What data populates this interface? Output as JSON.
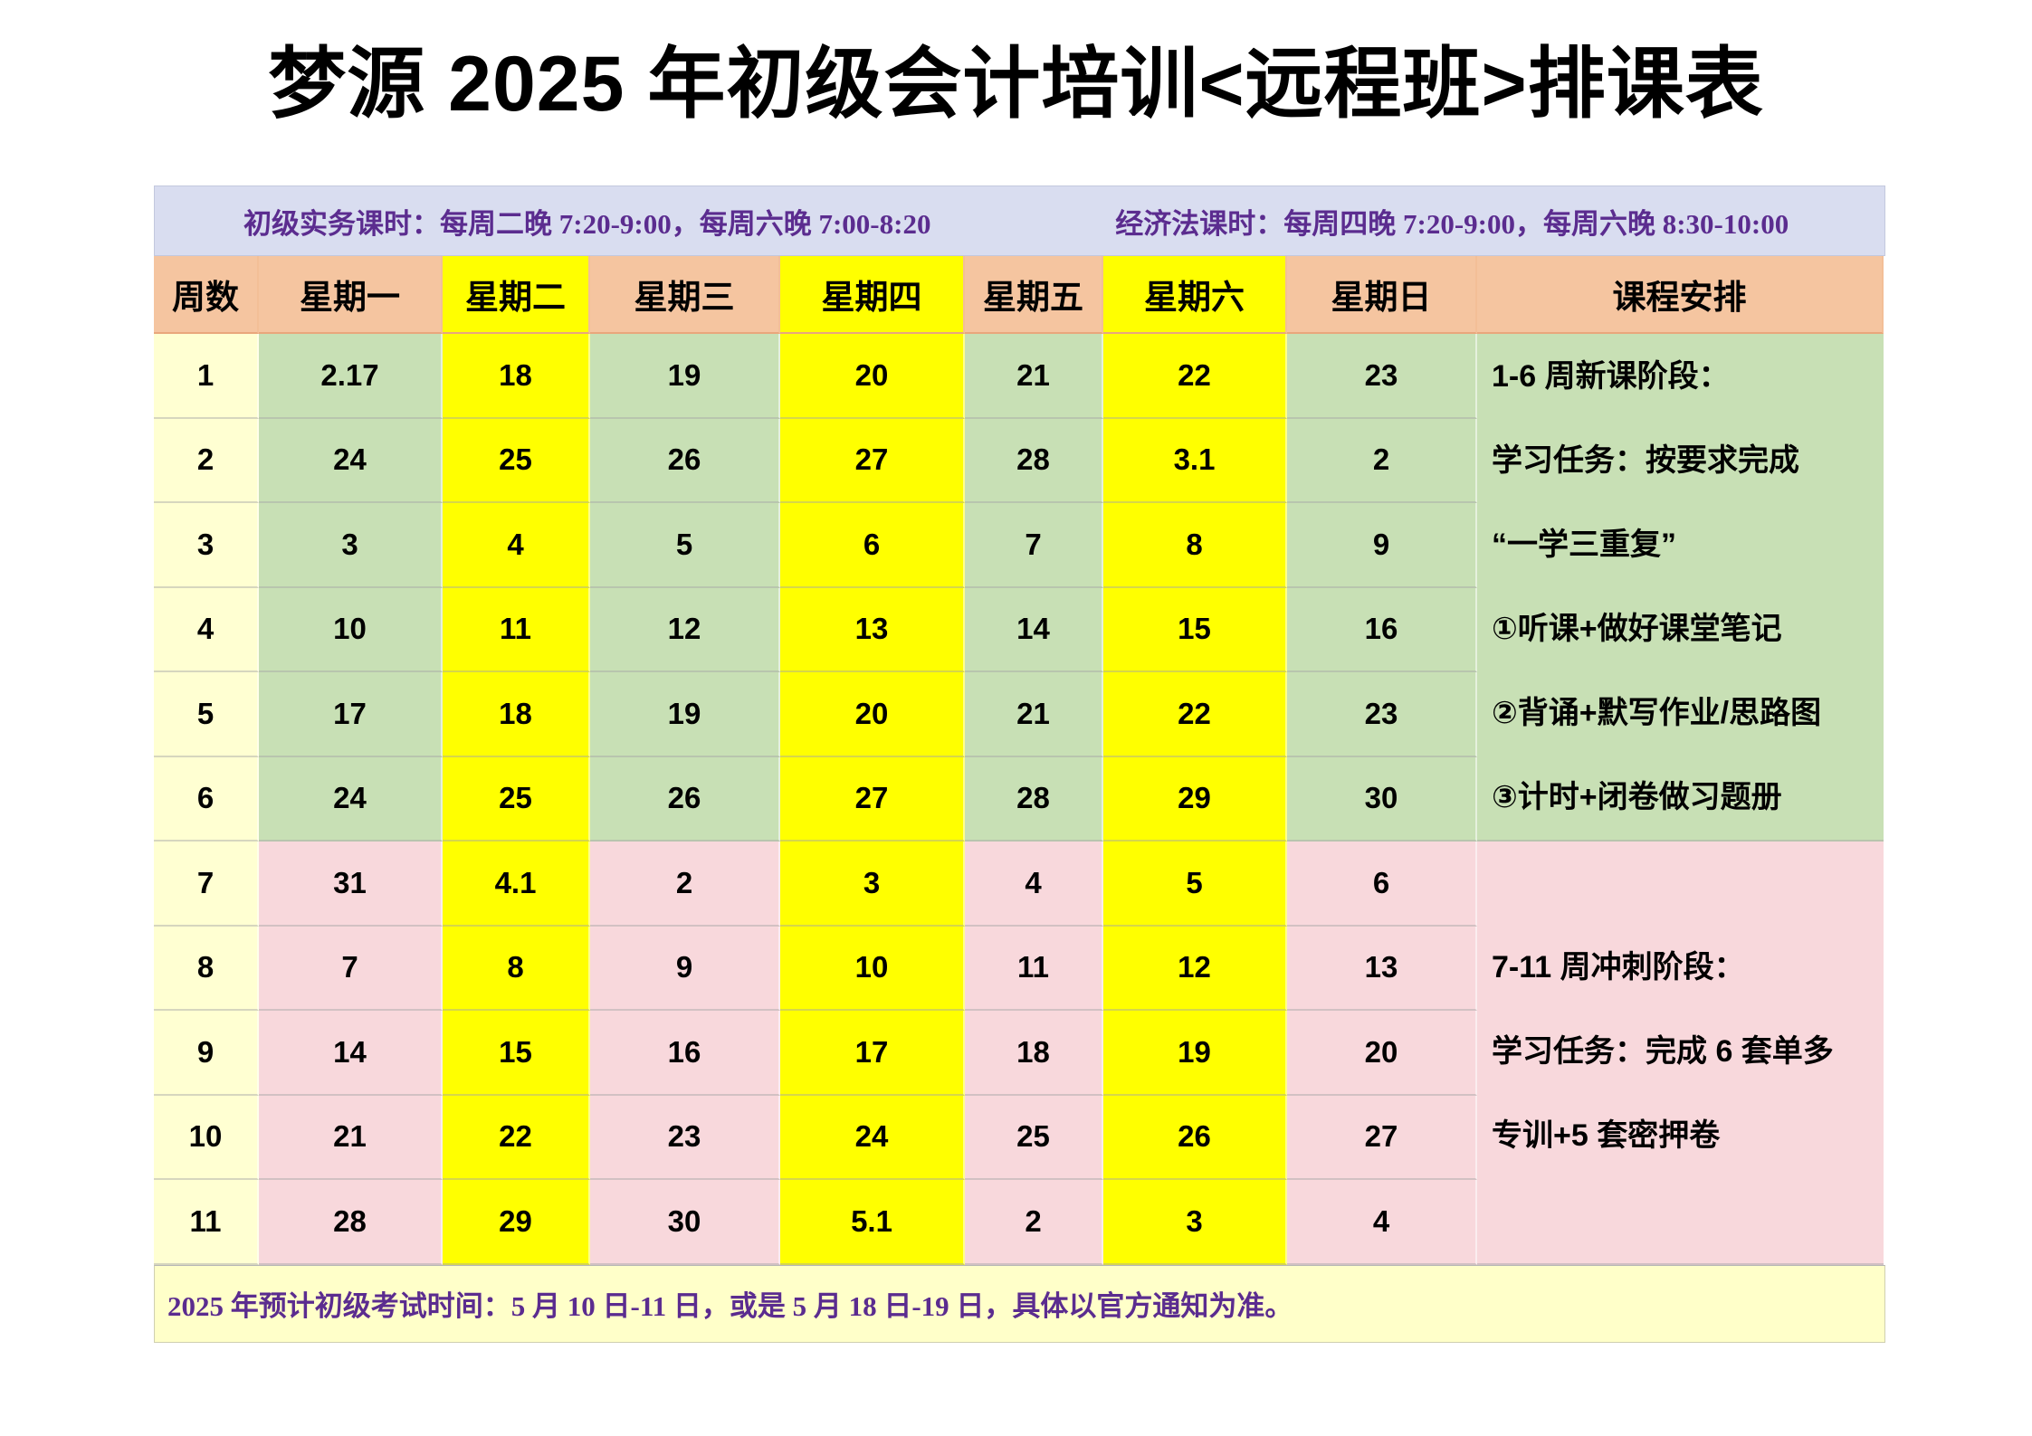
{
  "title": "梦源 2025 年初级会计培训<远程班>排课表",
  "info_bar": {
    "left": "初级实务课时：每周二晚 7:20-9:00，每周六晚 7:00-8:20",
    "right": "经济法课时：每周四晚 7:20-9:00，每周六晚 8:30-10:00"
  },
  "table": {
    "headers": [
      "周数",
      "星期一",
      "星期二",
      "星期三",
      "星期四",
      "星期五",
      "星期六",
      "星期日",
      "课程安排"
    ],
    "highlighted_day_columns": [
      "星期二",
      "星期四",
      "星期六"
    ],
    "rows": [
      {
        "week": "1",
        "phase": "new",
        "days": [
          "2.17",
          "18",
          "19",
          "20",
          "21",
          "22",
          "23"
        ]
      },
      {
        "week": "2",
        "phase": "new",
        "days": [
          "24",
          "25",
          "26",
          "27",
          "28",
          "3.1",
          "2"
        ]
      },
      {
        "week": "3",
        "phase": "new",
        "days": [
          "3",
          "4",
          "5",
          "6",
          "7",
          "8",
          "9"
        ]
      },
      {
        "week": "4",
        "phase": "new",
        "days": [
          "10",
          "11",
          "12",
          "13",
          "14",
          "15",
          "16"
        ]
      },
      {
        "week": "5",
        "phase": "new",
        "days": [
          "17",
          "18",
          "19",
          "20",
          "21",
          "22",
          "23"
        ]
      },
      {
        "week": "6",
        "phase": "new",
        "days": [
          "24",
          "25",
          "26",
          "27",
          "28",
          "29",
          "30"
        ]
      },
      {
        "week": "7",
        "phase": "sprint",
        "days": [
          "31",
          "4.1",
          "2",
          "3",
          "4",
          "5",
          "6"
        ]
      },
      {
        "week": "8",
        "phase": "sprint",
        "days": [
          "7",
          "8",
          "9",
          "10",
          "11",
          "12",
          "13"
        ]
      },
      {
        "week": "9",
        "phase": "sprint",
        "days": [
          "14",
          "15",
          "16",
          "17",
          "18",
          "19",
          "20"
        ]
      },
      {
        "week": "10",
        "phase": "sprint",
        "days": [
          "21",
          "22",
          "23",
          "24",
          "25",
          "26",
          "27"
        ]
      },
      {
        "week": "11",
        "phase": "sprint",
        "days": [
          "28",
          "29",
          "30",
          "5.1",
          "2",
          "3",
          "4"
        ]
      }
    ],
    "phase_notes": [
      {
        "rows": "1-6",
        "lines": [
          "1-6 周新课阶段：",
          "学习任务：按要求完成",
          "“一学三重复”",
          "①听课+做好课堂笔记",
          "②背诵+默写作业/思路图",
          "③计时+闭卷做习题册"
        ]
      },
      {
        "rows": "7-11",
        "lines": [
          "7-11 周冲刺阶段：",
          "学习任务：完成 6 套单多",
          "专训+5 套密押卷"
        ]
      }
    ]
  },
  "footer_note": "2025 年预计初级考试时间：5 月 10 日-11 日，或是 5 月 18 日-19 日，具体以官方通知为准。",
  "colors": {
    "purple": "#5B2C8F",
    "lavender": "#D9DDF0",
    "peach": "#F5C5A0",
    "yellow": "#FFFF00",
    "cream": "#FFFFD2",
    "green": "#C8E0B5",
    "pink": "#F8D8DC",
    "footer_yellow": "#FFFFC9"
  }
}
